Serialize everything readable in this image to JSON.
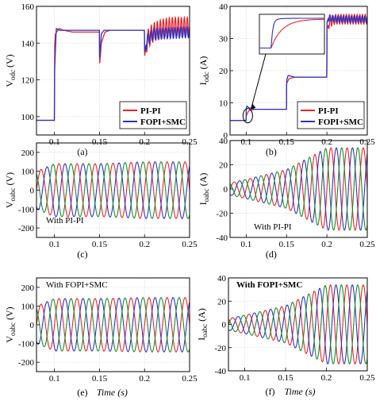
{
  "chart_data": [
    {
      "id": "a",
      "type": "line",
      "caption": "(a)",
      "ylabel": "V_odc (V)",
      "ylabel_main": "V",
      "ylabel_sub": "odc",
      "ylabel_unit": "(V)",
      "xlim": [
        0.08,
        0.25
      ],
      "ylim": [
        90,
        160
      ],
      "xticks": [
        "0.1",
        "0.15",
        "0.2",
        "0.25"
      ],
      "yticks": [
        "100",
        "120",
        "140",
        "160"
      ],
      "colors": [
        "#e8262a",
        "#2f31c4"
      ],
      "legend": [
        "PI-PI",
        "FOPI+SMC"
      ],
      "series": [
        {
          "name": "PI-PI",
          "x": [
            0.08,
            0.0999,
            0.1001,
            0.101,
            0.105,
            0.11,
            0.12,
            0.13,
            0.14,
            0.1499,
            0.1501,
            0.152,
            0.156,
            0.162,
            0.17,
            0.18,
            0.19,
            0.1999,
            0.2001,
            0.203,
            0.21,
            0.22,
            0.23,
            0.24,
            0.25
          ],
          "y": [
            98,
            98,
            138,
            145,
            148,
            147,
            146,
            146,
            146,
            146,
            128,
            140,
            146,
            147,
            147,
            147,
            147,
            147,
            133,
            142,
            146,
            148,
            149,
            149,
            149
          ],
          "ripple_from": 0.2,
          "ripple_amp": 5
        },
        {
          "name": "FOPI+SMC",
          "x": [
            0.08,
            0.0999,
            0.1001,
            0.102,
            0.105,
            0.11,
            0.12,
            0.14,
            0.1499,
            0.1501,
            0.152,
            0.155,
            0.17,
            0.1999,
            0.2001,
            0.203,
            0.21,
            0.25
          ],
          "y": [
            98,
            98,
            125,
            148,
            147,
            147,
            147,
            147,
            147,
            131,
            145,
            147,
            147,
            147,
            135,
            142,
            145,
            146
          ],
          "ripple_from": 0.2,
          "ripple_amp": 3
        }
      ]
    },
    {
      "id": "b",
      "type": "line",
      "caption": "(b)",
      "ylabel": "I_odc (A)",
      "ylabel_main": "I",
      "ylabel_sub": "odc",
      "ylabel_unit": "(A)",
      "xlim": [
        0.08,
        0.25
      ],
      "ylim": [
        0,
        40
      ],
      "xticks": [
        "0.1",
        "0.15",
        "0.2",
        "0.25"
      ],
      "yticks": [
        "0",
        "10",
        "20",
        "30",
        "40"
      ],
      "colors": [
        "#e8262a",
        "#2f31c4"
      ],
      "legend": [
        "PI-PI",
        "FOPI+SMC"
      ],
      "series": [
        {
          "name": "PI-PI",
          "x": [
            0.08,
            0.0999,
            0.1001,
            0.103,
            0.11,
            0.1499,
            0.1501,
            0.153,
            0.16,
            0.1999,
            0.2001,
            0.203,
            0.21,
            0.25
          ],
          "y": [
            4.5,
            4.5,
            6,
            7.5,
            8,
            8,
            16,
            17.5,
            18,
            18,
            33,
            35,
            36,
            36
          ],
          "ripple_from": 0.2,
          "ripple_amp": 1.5
        },
        {
          "name": "FOPI+SMC",
          "x": [
            0.08,
            0.0999,
            0.1001,
            0.101,
            0.103,
            0.11,
            0.1499,
            0.1501,
            0.152,
            0.16,
            0.1999,
            0.2001,
            0.202,
            0.21,
            0.25
          ],
          "y": [
            4.5,
            4.5,
            8.5,
            9,
            8.5,
            8,
            8,
            17,
            18.5,
            18,
            18,
            35,
            36.5,
            36,
            36
          ],
          "ripple_from": 0.2,
          "ripple_amp": 1
        }
      ]
    },
    {
      "id": "c",
      "type": "line",
      "caption": "(c)",
      "ylabel": "V_oabc (V)",
      "ylabel_main": "V",
      "ylabel_sub": "oabc",
      "ylabel_unit": "(V)",
      "annotation": "With PI-PI",
      "xlim": [
        0.08,
        0.25
      ],
      "ylim": [
        -250,
        250
      ],
      "xticks": [
        "0.1",
        "0.15",
        "0.2",
        "0.25"
      ],
      "yticks": [
        "-200",
        "-100",
        "0",
        "100",
        "200"
      ],
      "colors": [
        "#e8262a",
        "#2f31c4",
        "#1a8a2a"
      ],
      "waveform": {
        "frequency": 50,
        "amp_x": [
          0.08,
          0.1,
          0.15,
          0.2,
          0.25
        ],
        "amp_y": [
          100,
          140,
          140,
          150,
          150
        ]
      }
    },
    {
      "id": "d",
      "type": "line",
      "caption": "(d)",
      "ylabel": "I_oabc (A)",
      "ylabel_main": "I",
      "ylabel_sub": "oabc",
      "ylabel_unit": "(A)",
      "annotation": "With PI-PI",
      "xlim": [
        0.08,
        0.25
      ],
      "ylim": [
        -40,
        40
      ],
      "xticks": [
        "0.1",
        "0.15",
        "0.2",
        "0.25"
      ],
      "yticks": [
        "-40",
        "-20",
        "0",
        "20",
        "40"
      ],
      "colors": [
        "#e8262a",
        "#2f31c4",
        "#1a8a2a"
      ],
      "waveform": {
        "frequency": 50,
        "amp_x": [
          0.08,
          0.1,
          0.15,
          0.2,
          0.25
        ],
        "amp_y": [
          5,
          8,
          16,
          34,
          34
        ]
      }
    },
    {
      "id": "e",
      "type": "line",
      "caption": "(e)",
      "ylabel": "V_oabc (V)",
      "ylabel_main": "V",
      "ylabel_sub": "oabc",
      "ylabel_unit": "(V)",
      "annotation": "With FOPI+SMC",
      "xlabel": "Time (s)",
      "xlim": [
        0.08,
        0.25
      ],
      "ylim": [
        -250,
        250
      ],
      "xticks": [
        "0.1",
        "0.15",
        "0.2",
        "0.25"
      ],
      "yticks": [
        "-200",
        "-100",
        "0",
        "100",
        "200"
      ],
      "colors": [
        "#e8262a",
        "#2f31c4",
        "#1a8a2a"
      ],
      "waveform": {
        "frequency": 50,
        "amp_x": [
          0.08,
          0.1,
          0.15,
          0.2,
          0.25
        ],
        "amp_y": [
          100,
          140,
          140,
          145,
          145
        ]
      }
    },
    {
      "id": "f",
      "type": "line",
      "caption": "(f)",
      "ylabel": "I_oabc (A)",
      "ylabel_main": "I",
      "ylabel_sub": "oabc",
      "ylabel_unit": "(A)",
      "annotation": "With FOPI+SMC",
      "xlabel": "Time (s)",
      "xlim": [
        0.08,
        0.25
      ],
      "ylim": [
        -40,
        40
      ],
      "xticks": [
        "0.1",
        "0.15",
        "0.2",
        "0.25"
      ],
      "yticks": [
        "-40",
        "-20",
        "0",
        "20",
        "40"
      ],
      "colors": [
        "#e8262a",
        "#2f31c4",
        "#1a8a2a"
      ],
      "waveform": {
        "frequency": 50,
        "amp_x": [
          0.08,
          0.1,
          0.15,
          0.2,
          0.25
        ],
        "amp_y": [
          5,
          8,
          16,
          34,
          34
        ]
      }
    }
  ]
}
